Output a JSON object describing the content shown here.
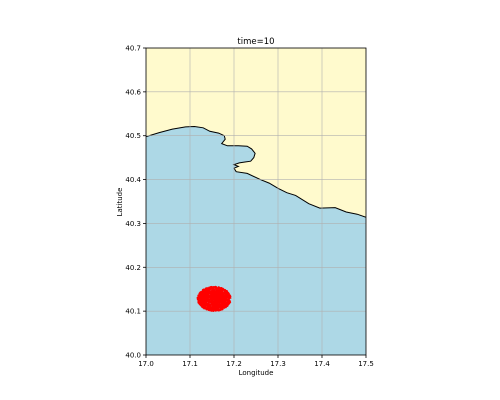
{
  "figure": {
    "title": "time=10",
    "xlabel": "Longitude",
    "ylabel": "Latitude"
  },
  "colors": {
    "land": "#fffacd",
    "sea": "#add8e6",
    "coastline": "#000000",
    "particles": "#ff0000",
    "grid": "#b0b0b0"
  },
  "chart_data": {
    "type": "scatter",
    "title": "time=10",
    "xlabel": "Longitude",
    "ylabel": "Latitude",
    "xlim": [
      17.0,
      17.5
    ],
    "ylim": [
      40.0,
      40.7
    ],
    "xticks": [
      "17.0",
      "17.1",
      "17.2",
      "17.3",
      "17.4",
      "17.5"
    ],
    "yticks": [
      "40.0",
      "40.1",
      "40.2",
      "40.3",
      "40.4",
      "40.5",
      "40.6",
      "40.7"
    ],
    "grid": true,
    "coastline": [
      [
        17.0,
        40.498
      ],
      [
        17.03,
        40.507
      ],
      [
        17.06,
        40.515
      ],
      [
        17.09,
        40.52
      ],
      [
        17.11,
        40.521
      ],
      [
        17.13,
        40.518
      ],
      [
        17.145,
        40.51
      ],
      [
        17.165,
        40.506
      ],
      [
        17.178,
        40.5
      ],
      [
        17.18,
        40.492
      ],
      [
        17.172,
        40.482
      ],
      [
        17.185,
        40.477
      ],
      [
        17.21,
        40.477
      ],
      [
        17.23,
        40.476
      ],
      [
        17.24,
        40.47
      ],
      [
        17.248,
        40.46
      ],
      [
        17.245,
        40.45
      ],
      [
        17.238,
        40.442
      ],
      [
        17.225,
        40.44
      ],
      [
        17.212,
        40.438
      ],
      [
        17.2,
        40.434
      ],
      [
        17.21,
        40.43
      ],
      [
        17.2,
        40.426
      ],
      [
        17.205,
        40.418
      ],
      [
        17.23,
        40.414
      ],
      [
        17.26,
        40.4
      ],
      [
        17.28,
        40.392
      ],
      [
        17.3,
        40.38
      ],
      [
        17.32,
        40.37
      ],
      [
        17.34,
        40.364
      ],
      [
        17.37,
        40.345
      ],
      [
        17.395,
        40.335
      ],
      [
        17.43,
        40.336
      ],
      [
        17.455,
        40.326
      ],
      [
        17.48,
        40.321
      ],
      [
        17.5,
        40.314
      ]
    ],
    "particle_cloud": {
      "center": [
        17.155,
        40.128
      ],
      "radius_x": 0.038,
      "radius_y": 0.028,
      "count": 1500,
      "time": 10
    }
  }
}
